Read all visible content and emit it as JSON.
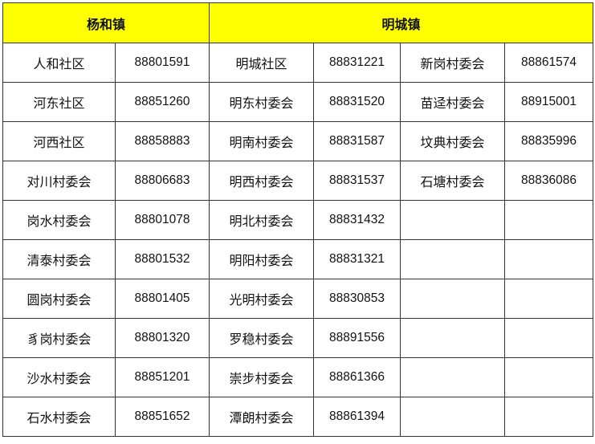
{
  "headers": [
    "杨和镇",
    "明城镇"
  ],
  "colors": {
    "header_bg": "#ffff00"
  },
  "rows": [
    [
      [
        "人和社区",
        "88801591"
      ],
      [
        "明城社区",
        "88831221"
      ],
      [
        "新岗村委会",
        "88861574"
      ]
    ],
    [
      [
        "河东社区",
        "88851260"
      ],
      [
        "明东村委会",
        "88831520"
      ],
      [
        "苗迳村委会",
        "88915001"
      ]
    ],
    [
      [
        "河西社区",
        "88858883"
      ],
      [
        "明南村委会",
        "88831587"
      ],
      [
        "坟典村委会",
        "88835996"
      ]
    ],
    [
      [
        "对川村委会",
        "88806683"
      ],
      [
        "明西村委会",
        "88831537"
      ],
      [
        "石塘村委会",
        "88836086"
      ]
    ],
    [
      [
        "岗水村委会",
        "88801078"
      ],
      [
        "明北村委会",
        "88831432"
      ],
      [
        "",
        ""
      ]
    ],
    [
      [
        "清泰村委会",
        "88801532"
      ],
      [
        "明阳村委会",
        "88831321"
      ],
      [
        "",
        ""
      ]
    ],
    [
      [
        "圆岗村委会",
        "88801405"
      ],
      [
        "光明村委会",
        "88830853"
      ],
      [
        "",
        ""
      ]
    ],
    [
      [
        "豸岗村委会",
        "88801320"
      ],
      [
        "罗稳村委会",
        "88891556"
      ],
      [
        "",
        ""
      ]
    ],
    [
      [
        "沙水村委会",
        "88851201"
      ],
      [
        "崇步村委会",
        "88861366"
      ],
      [
        "",
        ""
      ]
    ],
    [
      [
        "石水村委会",
        "88851652"
      ],
      [
        "潭朗村委会",
        "88861394"
      ],
      [
        "",
        ""
      ]
    ]
  ]
}
